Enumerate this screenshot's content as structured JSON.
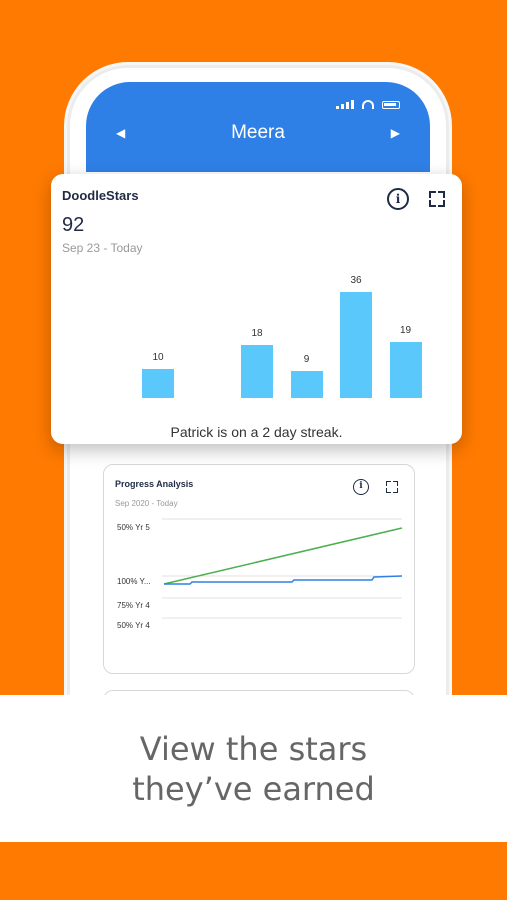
{
  "header": {
    "title": "Meera",
    "prev_icon": "chevron-left-icon",
    "next_icon": "chevron-right-icon"
  },
  "doodlestars": {
    "title": "DoodleStars",
    "value": "92",
    "range": "Sep 23 - Today",
    "streak": "Patrick is on a 2 day streak.",
    "bar_color": "#5ac8fa",
    "chart_data": {
      "type": "bar",
      "categories": [
        "",
        "",
        "",
        "",
        "",
        ""
      ],
      "values": [
        10,
        0,
        18,
        9,
        36,
        19
      ],
      "ylim": [
        0,
        40
      ],
      "grid": false
    },
    "bar_labels": [
      "10",
      "18",
      "9",
      "36",
      "19"
    ]
  },
  "progress": {
    "title": "Progress Analysis",
    "range": "Sep 2020 - Today",
    "labels": [
      "50% Yr 5",
      "100% Y...",
      "75% Yr 4",
      "50% Yr 4"
    ],
    "series_colors": [
      "#4caf50",
      "#2f80e6"
    ]
  },
  "banner": {
    "line1": "View the stars",
    "line2": "they’ve earned"
  },
  "colors": {
    "background": "#ff7a00",
    "header": "#2f80e6",
    "accent_bar": "#5ac8fa"
  }
}
